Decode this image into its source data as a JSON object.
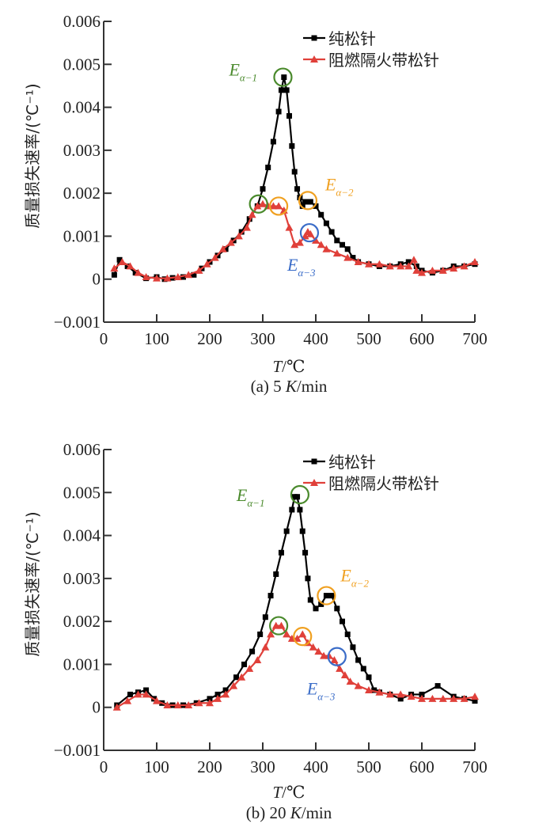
{
  "chart_data": [
    {
      "type": "line",
      "caption": "(a) 5 K/min",
      "caption_prefix": "(a) 5 ",
      "caption_italic": "K",
      "caption_suffix": "/min",
      "xlabel_italic": "T",
      "xlabel_suffix": "/℃",
      "ylabel": "质量损失速率/(℃⁻¹)",
      "xlim": [
        0,
        700
      ],
      "ylim": [
        -0.001,
        0.006
      ],
      "xticks": [
        "0",
        "100",
        "200",
        "300",
        "400",
        "500",
        "600",
        "700"
      ],
      "yticks": [
        "−0.001",
        "0",
        "0.001",
        "0.002",
        "0.003",
        "0.004",
        "0.005",
        "0.006"
      ],
      "legend_position": "top-right",
      "series": [
        {
          "name": "纯松针",
          "color": "#000000",
          "marker": "square",
          "x": [
            20,
            30,
            45,
            60,
            80,
            100,
            115,
            130,
            150,
            170,
            185,
            200,
            215,
            230,
            245,
            260,
            275,
            290,
            300,
            310,
            320,
            330,
            335,
            340,
            345,
            350,
            355,
            360,
            365,
            370,
            375,
            380,
            390,
            400,
            410,
            420,
            430,
            440,
            450,
            460,
            470,
            480,
            500,
            520,
            540,
            560,
            575,
            590,
            600,
            620,
            640,
            660,
            680,
            700
          ],
          "y": [
            0.0001,
            0.00045,
            0.0003,
            0.00015,
            2e-05,
            5e-05,
            0.0,
            3e-05,
            5e-05,
            0.0001,
            0.00025,
            0.0004,
            0.00055,
            0.0007,
            0.0009,
            0.0011,
            0.0014,
            0.0017,
            0.0021,
            0.0026,
            0.0032,
            0.0039,
            0.0044,
            0.0047,
            0.0044,
            0.0038,
            0.0031,
            0.0025,
            0.0021,
            0.0019,
            0.0017,
            0.0018,
            0.0018,
            0.0017,
            0.0015,
            0.0013,
            0.0011,
            0.0009,
            0.0008,
            0.0007,
            0.0005,
            0.0004,
            0.00035,
            0.0003,
            0.0003,
            0.00035,
            0.0004,
            0.0003,
            0.0002,
            0.00015,
            0.0002,
            0.0003,
            0.0003,
            0.00035
          ]
        },
        {
          "name": "阻燃隔火带松针",
          "color": "#e0403a",
          "marker": "triangle",
          "x": [
            20,
            35,
            50,
            65,
            80,
            100,
            120,
            140,
            160,
            180,
            195,
            210,
            225,
            240,
            255,
            270,
            280,
            290,
            300,
            310,
            320,
            330,
            340,
            350,
            360,
            370,
            380,
            385,
            390,
            400,
            410,
            420,
            440,
            460,
            480,
            500,
            520,
            540,
            560,
            575,
            585,
            590,
            600,
            620,
            640,
            660,
            680,
            700
          ],
          "y": [
            0.00025,
            0.0004,
            0.0003,
            0.00015,
            5e-05,
            2e-05,
            2e-05,
            5e-05,
            0.0001,
            0.0002,
            0.00035,
            0.0005,
            0.0007,
            0.00085,
            0.001,
            0.0012,
            0.0015,
            0.0017,
            0.00175,
            0.0017,
            0.0017,
            0.0017,
            0.0016,
            0.0012,
            0.0008,
            0.00085,
            0.001,
            0.0011,
            0.00105,
            0.0009,
            0.0008,
            0.0007,
            0.0006,
            0.0005,
            0.0004,
            0.00035,
            0.00035,
            0.0003,
            0.0003,
            0.0003,
            0.00045,
            0.0002,
            0.00015,
            0.0002,
            0.0002,
            0.00025,
            0.0003,
            0.0004
          ]
        }
      ],
      "annotations": [
        {
          "label": "E",
          "sub": "α−1",
          "color": "#4a8a2c",
          "points": [
            [
              338,
              0.0047
            ],
            [
              292,
              0.00175
            ]
          ]
        },
        {
          "label": "E",
          "sub": "α−2",
          "color": "#f0a020",
          "points": [
            [
              385,
              0.00183
            ],
            [
              330,
              0.0017
            ]
          ]
        },
        {
          "label": "E",
          "sub": "α−3",
          "color": "#3a6cc8",
          "points": [
            [
              388,
              0.00108
            ]
          ]
        }
      ]
    },
    {
      "type": "line",
      "caption": "(b) 20 K/min",
      "caption_prefix": "(b) 20 ",
      "caption_italic": "K",
      "caption_suffix": "/min",
      "xlabel_italic": "T",
      "xlabel_suffix": "/℃",
      "ylabel": "质量损失速率/(℃⁻¹)",
      "xlim": [
        0,
        700
      ],
      "ylim": [
        -0.001,
        0.006
      ],
      "xticks": [
        "0",
        "100",
        "200",
        "300",
        "400",
        "500",
        "600",
        "700"
      ],
      "yticks": [
        "−0.001",
        "0",
        "0.001",
        "0.002",
        "0.003",
        "0.004",
        "0.005",
        "0.006"
      ],
      "legend_position": "top-right",
      "series": [
        {
          "name": "纯松针",
          "color": "#000000",
          "marker": "square",
          "x": [
            25,
            50,
            65,
            80,
            95,
            110,
            130,
            150,
            175,
            200,
            215,
            230,
            250,
            265,
            280,
            295,
            305,
            315,
            325,
            335,
            345,
            355,
            360,
            365,
            370,
            375,
            380,
            385,
            390,
            400,
            410,
            420,
            430,
            440,
            450,
            460,
            470,
            480,
            490,
            500,
            510,
            520,
            540,
            560,
            580,
            600,
            630,
            660,
            680,
            700
          ],
          "y": [
            5e-05,
            0.0003,
            0.00035,
            0.0004,
            0.0002,
            0.0001,
            5e-05,
            5e-05,
            0.0001,
            0.0002,
            0.0003,
            0.0004,
            0.0007,
            0.001,
            0.0013,
            0.0017,
            0.0021,
            0.0026,
            0.0031,
            0.0036,
            0.0041,
            0.0046,
            0.0049,
            0.0049,
            0.0046,
            0.0041,
            0.0036,
            0.003,
            0.0025,
            0.0023,
            0.0024,
            0.0026,
            0.0026,
            0.0023,
            0.002,
            0.0017,
            0.0014,
            0.0011,
            0.0009,
            0.0007,
            0.0004,
            0.00035,
            0.0003,
            0.0002,
            0.0003,
            0.0003,
            0.0005,
            0.00025,
            0.0002,
            0.00015
          ]
        },
        {
          "name": "阻燃隔火带松针",
          "color": "#e0403a",
          "marker": "triangle",
          "x": [
            25,
            45,
            65,
            80,
            100,
            120,
            140,
            160,
            180,
            200,
            215,
            230,
            245,
            260,
            275,
            290,
            305,
            315,
            325,
            335,
            345,
            355,
            365,
            375,
            385,
            395,
            405,
            415,
            425,
            435,
            445,
            455,
            465,
            480,
            500,
            520,
            540,
            560,
            580,
            600,
            620,
            640,
            660,
            680,
            700
          ],
          "y": [
            0.0,
            0.00015,
            0.0003,
            0.0003,
            0.00015,
            5e-05,
            5e-05,
            5e-05,
            0.0001,
            0.0001,
            0.0002,
            0.0003,
            0.0005,
            0.0007,
            0.0009,
            0.0011,
            0.0014,
            0.0017,
            0.0019,
            0.0019,
            0.0017,
            0.0016,
            0.0016,
            0.0017,
            0.0015,
            0.0014,
            0.0013,
            0.0012,
            0.0012,
            0.0011,
            0.0009,
            0.00075,
            0.0006,
            0.0005,
            0.0004,
            0.00035,
            0.0003,
            0.0003,
            0.00025,
            0.0002,
            0.0002,
            0.0002,
            0.0002,
            0.0002,
            0.00025
          ]
        }
      ],
      "annotations": [
        {
          "label": "E",
          "sub": "α−1",
          "color": "#4a8a2c",
          "points": [
            [
              370,
              0.00495
            ],
            [
              330,
              0.0019
            ]
          ]
        },
        {
          "label": "E",
          "sub": "α−2",
          "color": "#f0a020",
          "points": [
            [
              420,
              0.0026
            ],
            [
              375,
              0.00165
            ]
          ]
        },
        {
          "label": "E",
          "sub": "α−3",
          "color": "#3a6cc8",
          "points": [
            [
              440,
              0.00118
            ]
          ]
        }
      ]
    }
  ]
}
